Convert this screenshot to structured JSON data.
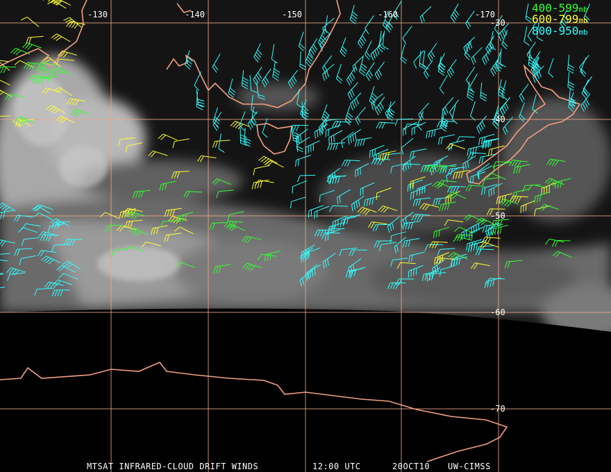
{
  "map": {
    "lon_labels": [
      "-130",
      "-140",
      "-150",
      "-160",
      "-170"
    ],
    "lat_labels": [
      "-30",
      "-40",
      "-50",
      "-60",
      "-70"
    ],
    "legend": [
      {
        "range": "400-599",
        "unit": "mb"
      },
      {
        "range": "600-799",
        "unit": "mb"
      },
      {
        "range": "800-950",
        "unit": "mb"
      }
    ],
    "footer": {
      "product": "MTSAT INFRARED-CLOUD DRIFT WINDS",
      "time": "12:00 UTC",
      "date": "20OCT10",
      "source": "UW-CIMSS"
    }
  }
}
